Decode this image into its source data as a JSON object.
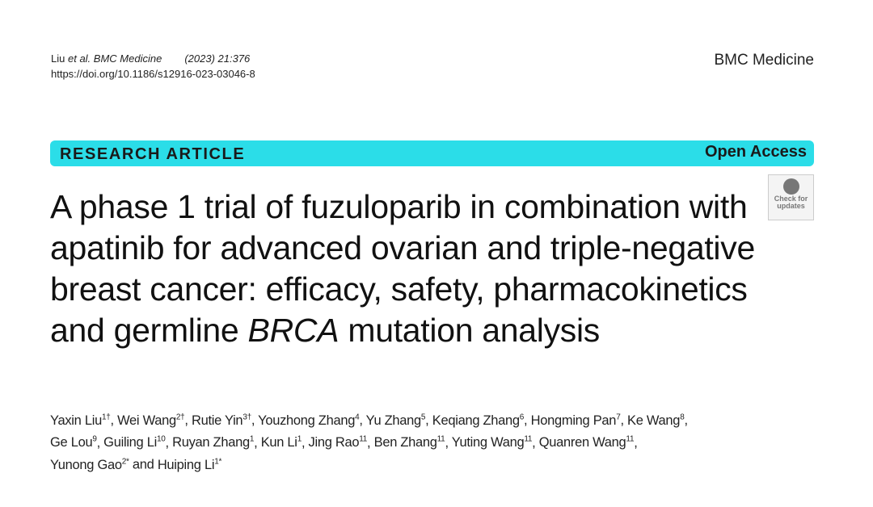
{
  "header": {
    "authors_short": "Liu",
    "etal": "et al.",
    "journal_italic": "BMC Medicine",
    "year_vol": "(2023) 21:376",
    "doi": "https://doi.org/10.1186/s12916-023-03046-8",
    "journal": "BMC Medicine"
  },
  "banner": {
    "type": "RESEARCH ARTICLE",
    "access": "Open Access",
    "color": "#2bdde8"
  },
  "title": {
    "main": "A phase 1 trial of fuzuloparib in combination with apatinib for advanced ovarian and triple-negative breast cancer: efficacy, safety, pharmacokinetics and germline ",
    "italic": "BRCA",
    "end": " mutation analysis"
  },
  "check_updates": {
    "line1": "Check for",
    "line2": "updates"
  },
  "authors": [
    {
      "name": "Yaxin Liu",
      "sup": "1†"
    },
    {
      "name": "Wei Wang",
      "sup": "2†"
    },
    {
      "name": "Rutie Yin",
      "sup": "3†"
    },
    {
      "name": "Youzhong Zhang",
      "sup": "4"
    },
    {
      "name": "Yu Zhang",
      "sup": "5"
    },
    {
      "name": "Keqiang Zhang",
      "sup": "6"
    },
    {
      "name": "Hongming Pan",
      "sup": "7"
    },
    {
      "name": "Ke Wang",
      "sup": "8"
    },
    {
      "name": "Ge Lou",
      "sup": "9"
    },
    {
      "name": "Guiling Li",
      "sup": "10"
    },
    {
      "name": "Ruyan Zhang",
      "sup": "1"
    },
    {
      "name": "Kun Li",
      "sup": "1"
    },
    {
      "name": "Jing Rao",
      "sup": "11"
    },
    {
      "name": "Ben Zhang",
      "sup": "11"
    },
    {
      "name": "Yuting Wang",
      "sup": "11"
    },
    {
      "name": "Quanren Wang",
      "sup": "11"
    },
    {
      "name": "Yunong Gao",
      "sup": "2*"
    },
    {
      "name": "Huiping Li",
      "sup": "1*"
    }
  ]
}
